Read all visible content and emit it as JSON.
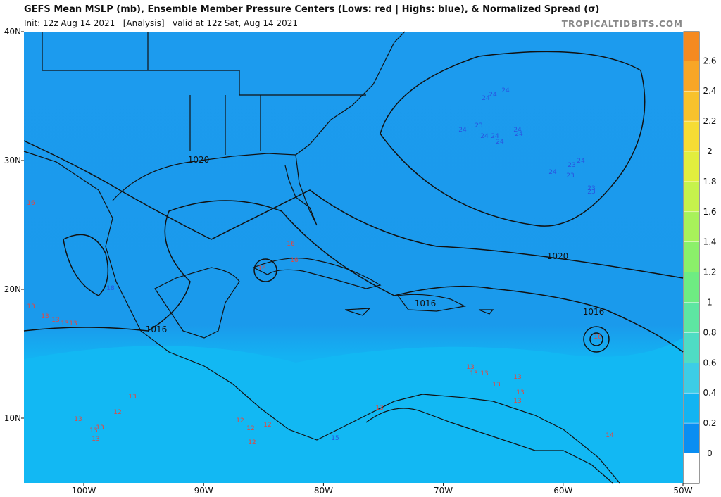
{
  "header": {
    "title": "GEFS Mean MSLP (mb), Ensemble Member Pressure Centers (Lows: red | Highs: blue), & Normalized Spread (σ)",
    "init": "Init: 12z Aug 14 2021   [Analysis]   valid at 12z Sat, Aug 14 2021",
    "source": "TROPICALTIDBITS.COM"
  },
  "map": {
    "lat_labels": [
      "40N",
      "30N",
      "20N",
      "10N"
    ],
    "lon_labels": [
      "100W",
      "90W",
      "80W",
      "70W",
      "60W",
      "50W"
    ],
    "isobar_labels": [
      "1020",
      "1020",
      "1016",
      "1016",
      "1016"
    ],
    "lows": [
      "16",
      "13",
      "13",
      "13",
      "13",
      "13",
      "13",
      "12",
      "13",
      "13",
      "13",
      "13",
      "12",
      "12",
      "12",
      "12",
      "16",
      "16",
      "16",
      "13",
      "13",
      "13",
      "13",
      "13",
      "13",
      "13",
      "13",
      "16",
      "14"
    ],
    "highs": [
      "24",
      "24",
      "24",
      "23",
      "24",
      "24",
      "24",
      "24",
      "24",
      "24",
      "24",
      "23",
      "24",
      "23",
      "23",
      "23",
      "18",
      "15"
    ]
  },
  "colorbar": {
    "ticks": [
      0,
      0.2,
      0.4,
      0.6,
      0.8,
      1,
      1.2,
      1.4,
      1.6,
      1.8,
      2,
      2.2,
      2.4,
      2.6
    ]
  }
}
